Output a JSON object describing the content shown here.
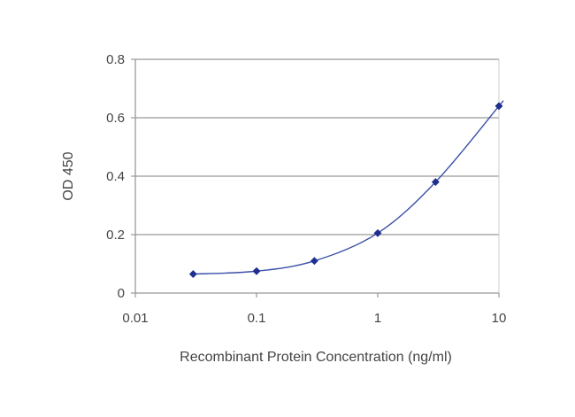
{
  "chart_data": {
    "type": "line",
    "title": "",
    "xlabel": "Recombinant Protein Concentration (ng/ml)",
    "ylabel": "OD 450",
    "x_scale": "log",
    "xlim": [
      0.01,
      10
    ],
    "ylim": [
      0,
      0.8
    ],
    "x_ticks": [
      0.01,
      0.1,
      1,
      10
    ],
    "x_tick_labels": [
      "0.01",
      "0.1",
      "1",
      "10"
    ],
    "y_ticks": [
      0,
      0.2,
      0.4,
      0.6,
      0.8
    ],
    "y_tick_labels": [
      "0",
      "0.2",
      "0.4",
      "0.6",
      "0.8"
    ],
    "grid": "horizontal",
    "legend": "none",
    "series": [
      {
        "x": [
          0.03,
          0.1,
          0.3,
          1,
          3,
          10
        ],
        "y": [
          0.065,
          0.075,
          0.11,
          0.205,
          0.38,
          0.64
        ],
        "color": "#3a4fa8",
        "marker": "diamond"
      }
    ],
    "colors": {
      "line": "#3a4fa8",
      "marker": "#1f2f8f",
      "grid": "#999999",
      "axis": "#999999",
      "text": "#444444"
    }
  }
}
